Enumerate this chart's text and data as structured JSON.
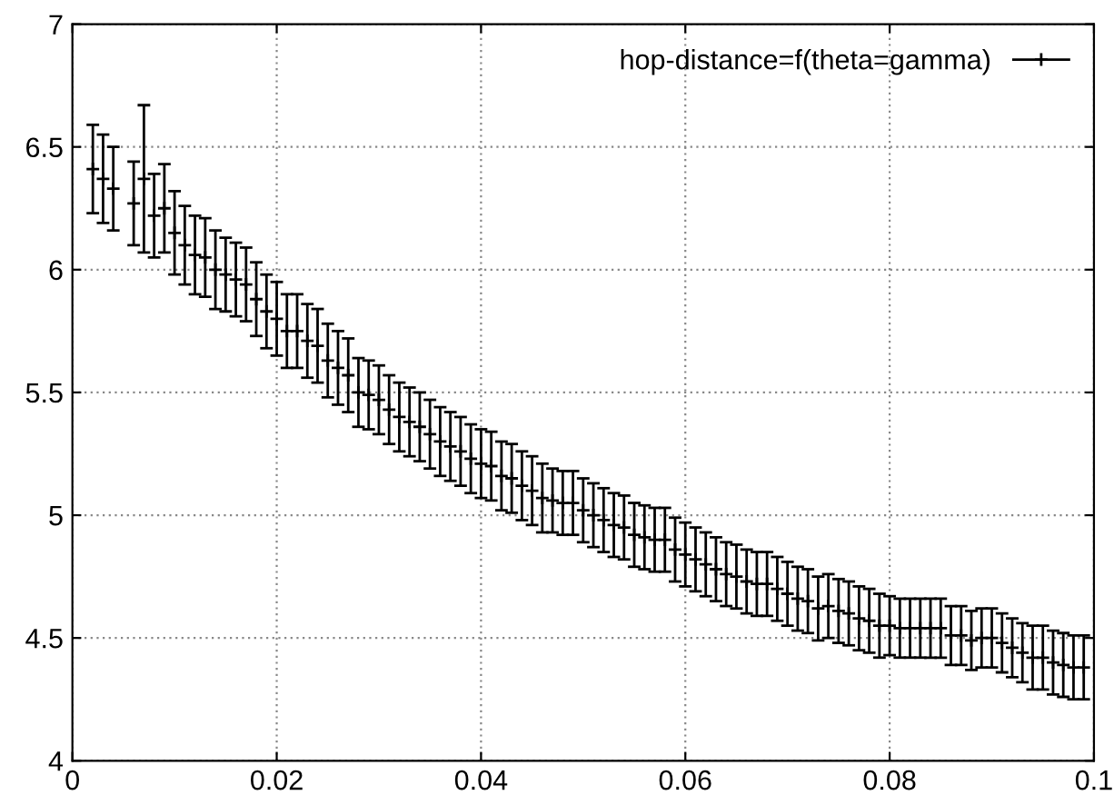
{
  "chart_data": {
    "type": "scatter",
    "marker": "cross",
    "legend": "top right",
    "grid": true,
    "xlim": [
      0,
      0.1
    ],
    "ylim": [
      4,
      7
    ],
    "xticks": [
      0,
      0.02,
      0.04,
      0.06,
      0.08,
      0.1
    ],
    "yticks": [
      4,
      4.5,
      5,
      5.5,
      6,
      6.5,
      7
    ],
    "series": [
      {
        "name": "hop-distance=f(theta=gamma)",
        "color": "#000000",
        "x": [
          0.002,
          0.003,
          0.004,
          0.006,
          0.007,
          0.008,
          0.009,
          0.01,
          0.011,
          0.012,
          0.013,
          0.014,
          0.015,
          0.016,
          0.017,
          0.018,
          0.019,
          0.02,
          0.021,
          0.022,
          0.023,
          0.024,
          0.025,
          0.026,
          0.027,
          0.028,
          0.029,
          0.03,
          0.031,
          0.032,
          0.033,
          0.034,
          0.035,
          0.036,
          0.037,
          0.038,
          0.039,
          0.04,
          0.041,
          0.042,
          0.043,
          0.044,
          0.045,
          0.046,
          0.047,
          0.048,
          0.049,
          0.05,
          0.051,
          0.052,
          0.053,
          0.054,
          0.055,
          0.056,
          0.057,
          0.058,
          0.059,
          0.06,
          0.061,
          0.062,
          0.063,
          0.064,
          0.065,
          0.066,
          0.067,
          0.068,
          0.069,
          0.07,
          0.071,
          0.072,
          0.073,
          0.074,
          0.075,
          0.076,
          0.077,
          0.078,
          0.079,
          0.08,
          0.081,
          0.082,
          0.083,
          0.084,
          0.085,
          0.086,
          0.087,
          0.088,
          0.089,
          0.09,
          0.091,
          0.092,
          0.093,
          0.094,
          0.095,
          0.096,
          0.097,
          0.098,
          0.099
        ],
        "values": [
          6.41,
          6.37,
          6.33,
          6.27,
          6.37,
          6.22,
          6.25,
          6.15,
          6.1,
          6.06,
          6.05,
          6.0,
          5.98,
          5.96,
          5.94,
          5.88,
          5.83,
          5.8,
          5.75,
          5.75,
          5.71,
          5.69,
          5.63,
          5.6,
          5.57,
          5.5,
          5.49,
          5.47,
          5.43,
          5.4,
          5.38,
          5.36,
          5.33,
          5.3,
          5.28,
          5.26,
          5.23,
          5.21,
          5.2,
          5.16,
          5.15,
          5.12,
          5.1,
          5.07,
          5.06,
          5.05,
          5.05,
          5.02,
          5.0,
          4.98,
          4.96,
          4.95,
          4.92,
          4.91,
          4.9,
          4.9,
          4.86,
          4.84,
          4.82,
          4.8,
          4.78,
          4.76,
          4.75,
          4.73,
          4.72,
          4.72,
          4.7,
          4.68,
          4.66,
          4.65,
          4.62,
          4.63,
          4.61,
          4.6,
          4.58,
          4.57,
          4.55,
          4.55,
          4.54,
          4.54,
          4.54,
          4.54,
          4.54,
          4.51,
          4.51,
          4.49,
          4.5,
          4.5,
          4.48,
          4.46,
          4.44,
          4.42,
          4.42,
          4.4,
          4.39,
          4.38,
          4.38
        ],
        "errors": [
          0.18,
          0.18,
          0.17,
          0.17,
          0.3,
          0.17,
          0.18,
          0.17,
          0.16,
          0.16,
          0.16,
          0.16,
          0.15,
          0.15,
          0.15,
          0.15,
          0.15,
          0.15,
          0.15,
          0.15,
          0.15,
          0.15,
          0.15,
          0.15,
          0.15,
          0.14,
          0.14,
          0.14,
          0.14,
          0.14,
          0.14,
          0.14,
          0.14,
          0.14,
          0.14,
          0.14,
          0.14,
          0.14,
          0.14,
          0.14,
          0.14,
          0.14,
          0.14,
          0.14,
          0.13,
          0.13,
          0.13,
          0.13,
          0.13,
          0.13,
          0.13,
          0.13,
          0.13,
          0.13,
          0.13,
          0.13,
          0.13,
          0.13,
          0.13,
          0.13,
          0.13,
          0.13,
          0.13,
          0.13,
          0.13,
          0.13,
          0.13,
          0.13,
          0.13,
          0.13,
          0.13,
          0.13,
          0.13,
          0.13,
          0.13,
          0.13,
          0.13,
          0.12,
          0.12,
          0.12,
          0.12,
          0.12,
          0.12,
          0.12,
          0.12,
          0.12,
          0.12,
          0.12,
          0.12,
          0.12,
          0.12,
          0.13,
          0.13,
          0.13,
          0.13,
          0.13,
          0.13
        ]
      }
    ]
  }
}
